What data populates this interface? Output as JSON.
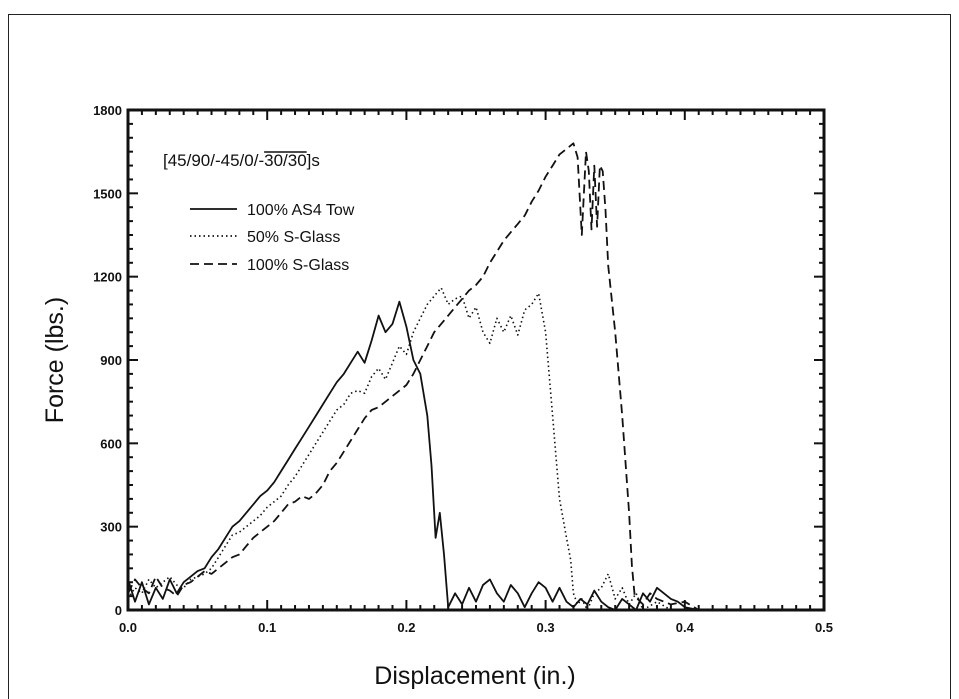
{
  "chart_data": {
    "type": "line",
    "title": "",
    "annotation": {
      "prefix": "[45/90/-45/0/-",
      "overlined": "30/30",
      "suffix": "]s"
    },
    "xlabel": "Displacement (in.)",
    "ylabel": "Force (lbs.)",
    "xlim": [
      0.0,
      0.5
    ],
    "ylim": [
      0,
      1800
    ],
    "x_ticks": [
      {
        "value": 0.0,
        "label": "0.0"
      },
      {
        "value": 0.1,
        "label": "0.1"
      },
      {
        "value": 0.2,
        "label": "0.2"
      },
      {
        "value": 0.3,
        "label": "0.3"
      },
      {
        "value": 0.4,
        "label": "0.4"
      },
      {
        "value": 0.5,
        "label": "0.5"
      }
    ],
    "y_ticks": [
      {
        "value": 0,
        "label": "0"
      },
      {
        "value": 300,
        "label": "300"
      },
      {
        "value": 600,
        "label": "600"
      },
      {
        "value": 900,
        "label": "900"
      },
      {
        "value": 1200,
        "label": "1200"
      },
      {
        "value": 1500,
        "label": "1500"
      },
      {
        "value": 1800,
        "label": "1800"
      }
    ],
    "grid": false,
    "legend_position": "top-left",
    "series": [
      {
        "name": "100% AS4 Tow",
        "style": "solid",
        "x": [
          0.0,
          0.005,
          0.01,
          0.015,
          0.02,
          0.025,
          0.03,
          0.035,
          0.04,
          0.045,
          0.05,
          0.055,
          0.06,
          0.065,
          0.07,
          0.075,
          0.08,
          0.085,
          0.09,
          0.095,
          0.1,
          0.105,
          0.11,
          0.115,
          0.12,
          0.125,
          0.13,
          0.135,
          0.14,
          0.145,
          0.15,
          0.155,
          0.16,
          0.165,
          0.17,
          0.175,
          0.18,
          0.185,
          0.19,
          0.195,
          0.2,
          0.205,
          0.21,
          0.215,
          0.218,
          0.221,
          0.224,
          0.227,
          0.23,
          0.235,
          0.24,
          0.245,
          0.25,
          0.255,
          0.26,
          0.265,
          0.27,
          0.275,
          0.28,
          0.285,
          0.29,
          0.295,
          0.3,
          0.305,
          0.31,
          0.315,
          0.32,
          0.325,
          0.33,
          0.335,
          0.34,
          0.345,
          0.35,
          0.355,
          0.36,
          0.365,
          0.37,
          0.375,
          0.38,
          0.385,
          0.39,
          0.395,
          0.4,
          0.41
        ],
        "y": [
          110,
          30,
          100,
          20,
          80,
          40,
          110,
          60,
          100,
          120,
          140,
          150,
          190,
          220,
          260,
          300,
          320,
          350,
          380,
          410,
          430,
          460,
          500,
          540,
          580,
          620,
          660,
          700,
          740,
          780,
          820,
          850,
          890,
          930,
          890,
          970,
          1060,
          1000,
          1030,
          1110,
          1020,
          900,
          850,
          700,
          520,
          260,
          350,
          200,
          10,
          60,
          20,
          80,
          30,
          90,
          110,
          60,
          30,
          90,
          60,
          10,
          60,
          100,
          80,
          30,
          80,
          30,
          10,
          40,
          20,
          70,
          30,
          10,
          0,
          40,
          20,
          0,
          60,
          30,
          80,
          60,
          40,
          30,
          10,
          0
        ]
      },
      {
        "name": "50% S-Glass",
        "style": "dotted",
        "x": [
          0.0,
          0.005,
          0.01,
          0.015,
          0.02,
          0.025,
          0.03,
          0.035,
          0.04,
          0.045,
          0.05,
          0.055,
          0.06,
          0.065,
          0.07,
          0.075,
          0.08,
          0.085,
          0.09,
          0.095,
          0.1,
          0.105,
          0.11,
          0.115,
          0.12,
          0.125,
          0.13,
          0.135,
          0.14,
          0.145,
          0.15,
          0.155,
          0.16,
          0.165,
          0.17,
          0.175,
          0.18,
          0.185,
          0.19,
          0.195,
          0.2,
          0.205,
          0.21,
          0.215,
          0.22,
          0.225,
          0.23,
          0.235,
          0.24,
          0.245,
          0.25,
          0.255,
          0.26,
          0.265,
          0.27,
          0.275,
          0.28,
          0.285,
          0.29,
          0.295,
          0.3,
          0.305,
          0.31,
          0.315,
          0.318,
          0.32,
          0.323,
          0.326,
          0.33,
          0.335,
          0.34,
          0.345,
          0.35,
          0.355,
          0.36,
          0.365,
          0.37,
          0.38,
          0.39
        ],
        "y": [
          40,
          80,
          60,
          110,
          80,
          100,
          120,
          90,
          80,
          110,
          120,
          130,
          150,
          190,
          230,
          270,
          280,
          300,
          320,
          340,
          370,
          390,
          410,
          450,
          480,
          520,
          560,
          600,
          640,
          680,
          720,
          740,
          780,
          790,
          780,
          840,
          870,
          830,
          890,
          950,
          920,
          1000,
          1050,
          1100,
          1130,
          1160,
          1100,
          1120,
          1130,
          1050,
          1090,
          1000,
          960,
          1050,
          1000,
          1060,
          990,
          1080,
          1100,
          1140,
          1000,
          700,
          400,
          260,
          180,
          60,
          20,
          40,
          0,
          60,
          80,
          130,
          40,
          80,
          20,
          60,
          0,
          30,
          0
        ]
      },
      {
        "name": "100% S-Glass",
        "style": "dashed",
        "x": [
          0.0,
          0.005,
          0.01,
          0.015,
          0.02,
          0.025,
          0.03,
          0.035,
          0.04,
          0.045,
          0.05,
          0.055,
          0.06,
          0.065,
          0.07,
          0.075,
          0.08,
          0.085,
          0.09,
          0.095,
          0.1,
          0.105,
          0.11,
          0.115,
          0.12,
          0.125,
          0.13,
          0.135,
          0.14,
          0.145,
          0.15,
          0.155,
          0.16,
          0.165,
          0.17,
          0.175,
          0.18,
          0.185,
          0.19,
          0.195,
          0.2,
          0.205,
          0.21,
          0.215,
          0.22,
          0.225,
          0.23,
          0.235,
          0.24,
          0.245,
          0.25,
          0.255,
          0.26,
          0.265,
          0.27,
          0.275,
          0.28,
          0.285,
          0.29,
          0.295,
          0.3,
          0.305,
          0.31,
          0.315,
          0.32,
          0.323,
          0.326,
          0.329,
          0.331,
          0.333,
          0.335,
          0.337,
          0.339,
          0.341,
          0.343,
          0.345,
          0.35,
          0.355,
          0.36,
          0.362,
          0.364,
          0.37,
          0.375,
          0.38,
          0.39,
          0.4,
          0.41
        ],
        "y": [
          60,
          110,
          80,
          60,
          120,
          80,
          70,
          50,
          90,
          100,
          120,
          140,
          130,
          150,
          170,
          190,
          200,
          230,
          260,
          280,
          300,
          320,
          350,
          380,
          390,
          410,
          400,
          420,
          450,
          500,
          530,
          570,
          610,
          650,
          690,
          720,
          730,
          750,
          770,
          790,
          810,
          850,
          900,
          950,
          1000,
          1030,
          1060,
          1090,
          1120,
          1150,
          1170,
          1200,
          1250,
          1290,
          1330,
          1360,
          1390,
          1420,
          1470,
          1510,
          1560,
          1600,
          1640,
          1660,
          1680,
          1630,
          1350,
          1650,
          1580,
          1370,
          1600,
          1380,
          1600,
          1580,
          1440,
          1240,
          1000,
          700,
          350,
          160,
          50,
          20,
          60,
          40,
          20,
          30,
          0
        ]
      }
    ]
  }
}
